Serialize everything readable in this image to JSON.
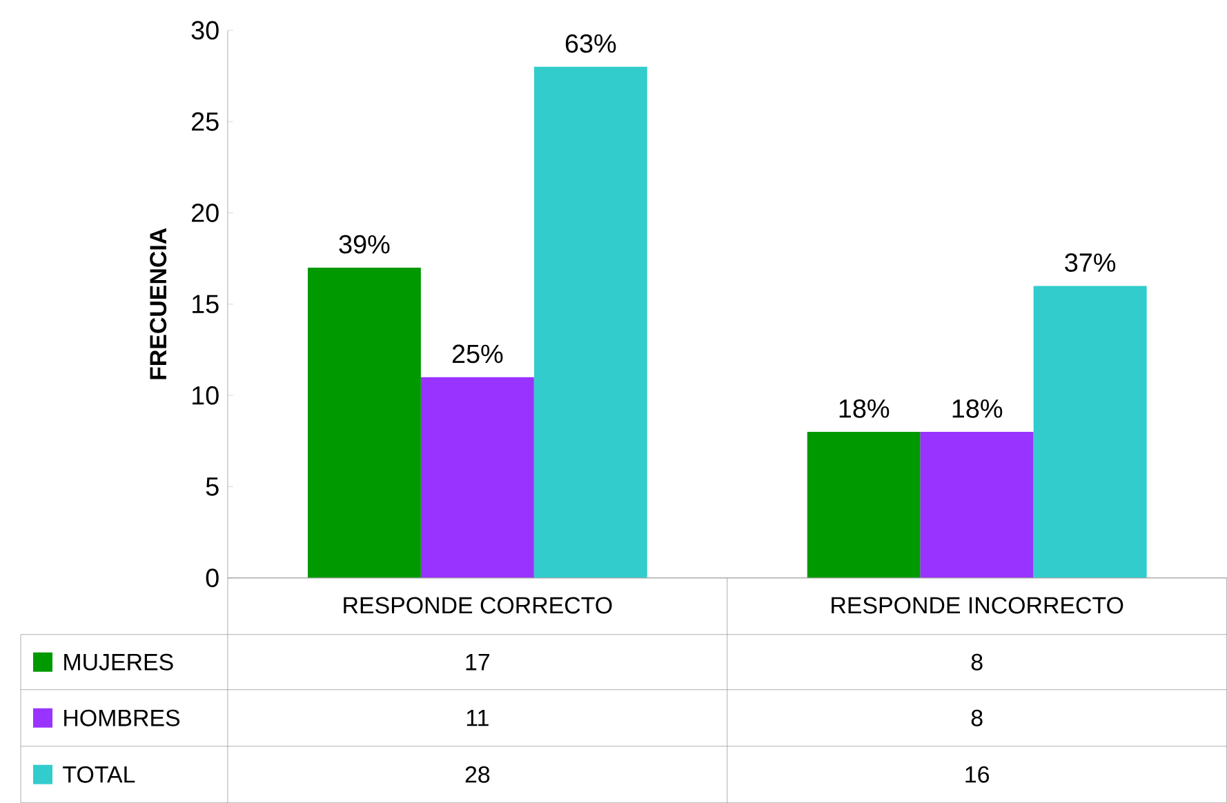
{
  "chart_data": {
    "type": "bar",
    "ylabel": "FRECUENCIA",
    "categories": [
      "RESPONDE CORRECTO",
      "RESPONDE INCORRECTO"
    ],
    "series": [
      {
        "name": "MUJERES",
        "color": "#009900",
        "values": [
          17,
          8
        ]
      },
      {
        "name": "HOMBRES",
        "color": "#9933ff",
        "values": [
          11,
          8
        ]
      },
      {
        "name": "TOTAL",
        "color": "#33cccc",
        "values": [
          28,
          16
        ]
      }
    ],
    "annotations": [
      "39%",
      "25%",
      "63%",
      "18%",
      "18%",
      "37%"
    ],
    "ylim": [
      0,
      30
    ],
    "yticks": [
      0,
      5,
      10,
      15,
      20,
      25,
      30
    ],
    "grid": false,
    "legend": "bottom",
    "data_labels": true
  }
}
